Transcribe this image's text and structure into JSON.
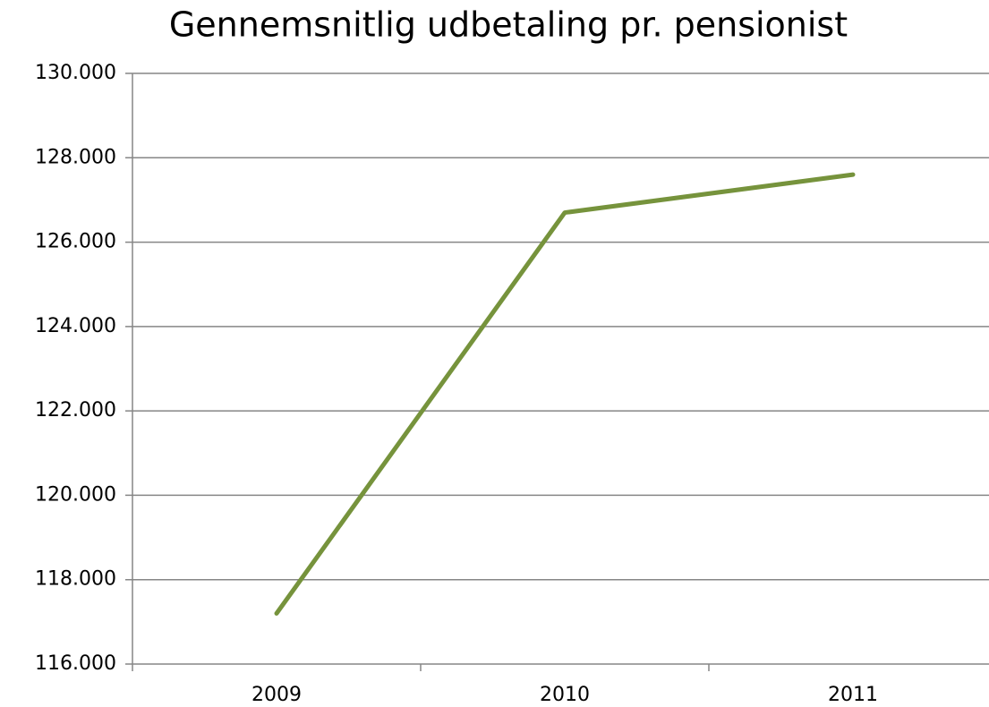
{
  "chart_data": {
    "type": "line",
    "title": "Gennemsnitlig udbetaling pr. pensionist",
    "categories": [
      "2009",
      "2010",
      "2011"
    ],
    "series": [
      {
        "name": null,
        "color": "#76933c",
        "values": [
          117200,
          126700,
          127600
        ]
      }
    ],
    "ylim": [
      116000,
      130000
    ],
    "yticks": [
      {
        "value": 116000,
        "label": "116.000"
      },
      {
        "value": 118000,
        "label": "118.000"
      },
      {
        "value": 120000,
        "label": "120.000"
      },
      {
        "value": 122000,
        "label": "122.000"
      },
      {
        "value": 124000,
        "label": "124.000"
      },
      {
        "value": 126000,
        "label": "126.000"
      },
      {
        "value": 128000,
        "label": "128.000"
      },
      {
        "value": 130000,
        "label": "130.000"
      }
    ],
    "grid": true
  }
}
